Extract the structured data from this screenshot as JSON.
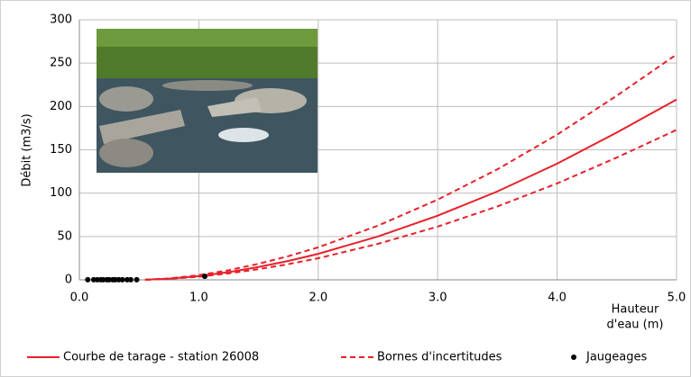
{
  "chart_data": {
    "type": "line",
    "y_label": "Débit (m3/s)",
    "x_label": [
      "Hauteur",
      "d'eau (m)"
    ],
    "x": [
      0.55,
      0.75,
      1.0,
      1.25,
      1.5,
      1.75,
      2.0,
      2.5,
      3.0,
      3.5,
      4.0,
      4.5,
      5.0
    ],
    "series": [
      {
        "name": "Courbe de tarage - station 26008",
        "color": "#e8202a",
        "linestyle": "solid",
        "values": [
          0.08,
          1.3,
          4.3,
          8.9,
          14.8,
          21.8,
          30,
          50,
          74,
          102,
          134,
          170,
          208
        ]
      },
      {
        "name": "Bornes d'incertitudes",
        "color": "#e8202a",
        "linestyle": "dashed",
        "values": [
          0.1,
          1.6,
          5.4,
          11.1,
          18.5,
          27.3,
          37.5,
          62.5,
          92.5,
          127.5,
          167.5,
          212.5,
          260
        ]
      },
      {
        "color": "#e8202a",
        "linestyle": "dashed",
        "values": [
          0.07,
          1.1,
          3.6,
          7.4,
          12.3,
          18.1,
          24.9,
          41.5,
          61.4,
          84.7,
          111.2,
          141.1,
          173
        ]
      }
    ],
    "points": {
      "name": "Jaugeages",
      "color": "#000000",
      "x": [
        0.07,
        0.12,
        0.15,
        0.18,
        0.2,
        0.23,
        0.25,
        0.28,
        0.3,
        0.33,
        0.36,
        0.4,
        0.43,
        0.48,
        1.05
      ],
      "values": [
        0.1,
        0.1,
        0.1,
        0.1,
        0.1,
        0.1,
        0.1,
        0.1,
        0.1,
        0.1,
        0.1,
        0.1,
        0.1,
        0.1,
        4
      ]
    },
    "xlim": [
      0,
      5
    ],
    "ylim": [
      0,
      300
    ],
    "xticks": [
      {
        "value": 0,
        "label": "0.0"
      },
      {
        "value": 1,
        "label": "1.0"
      },
      {
        "value": 2,
        "label": "2.0"
      },
      {
        "value": 3,
        "label": "3.0"
      },
      {
        "value": 4,
        "label": "4.0"
      },
      {
        "value": 5,
        "label": "5.0"
      }
    ],
    "yticks": [
      0,
      50,
      100,
      150,
      200,
      250,
      300
    ],
    "grid": true
  }
}
